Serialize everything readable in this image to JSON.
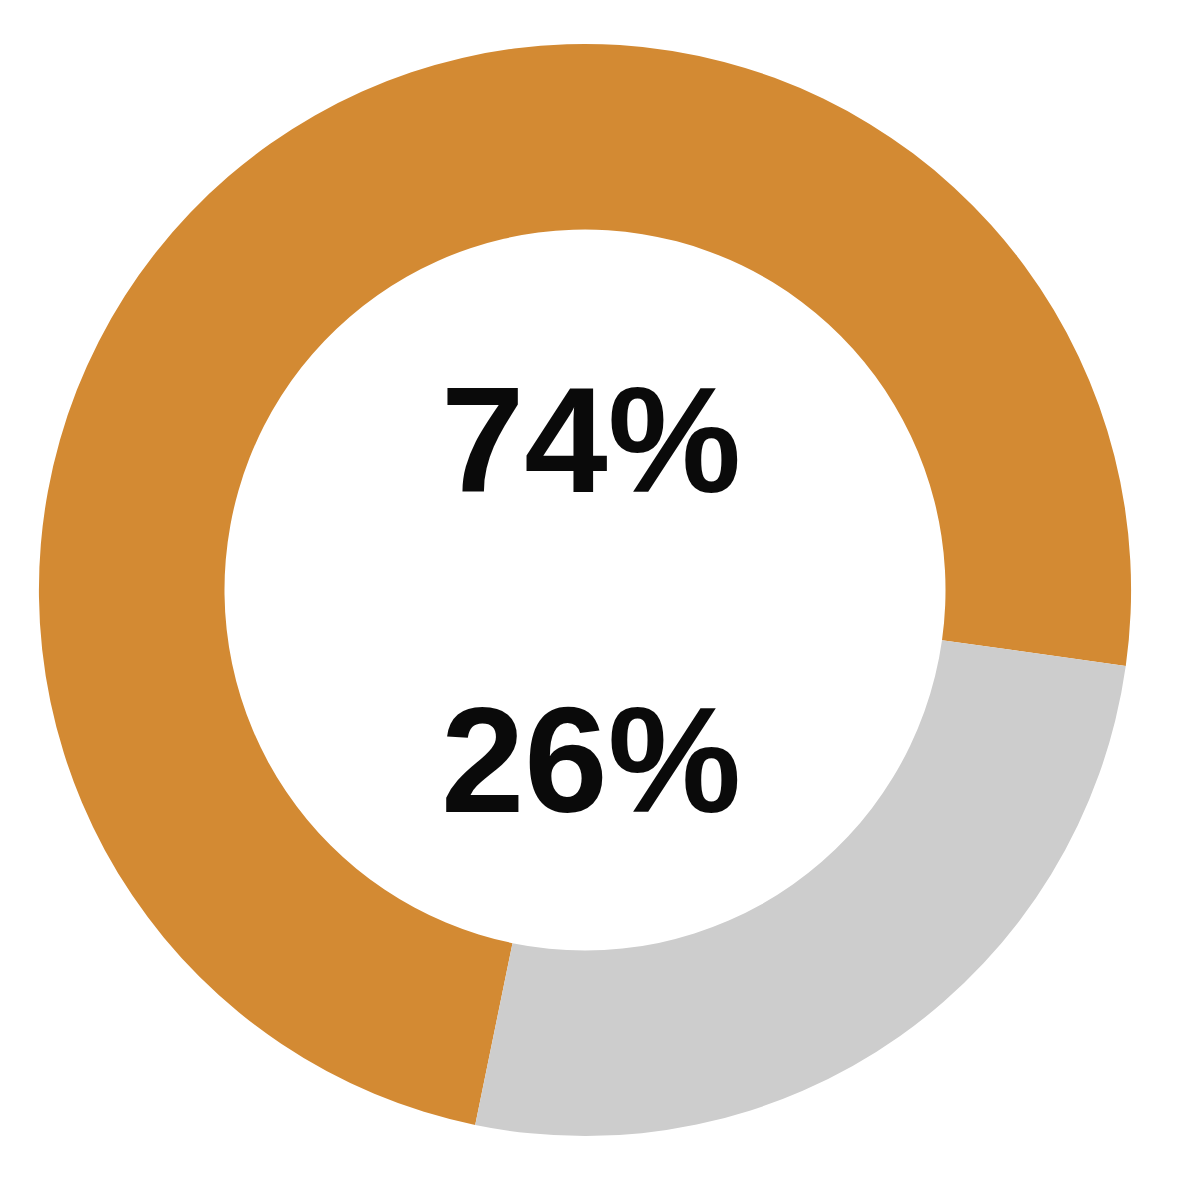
{
  "chart_data": {
    "type": "donut",
    "categories": [
      null,
      null
    ],
    "values": [
      74,
      26
    ],
    "value_labels": [
      "74%",
      "26%"
    ],
    "colors": [
      "#d38a33",
      "#cdcdcd"
    ]
  }
}
